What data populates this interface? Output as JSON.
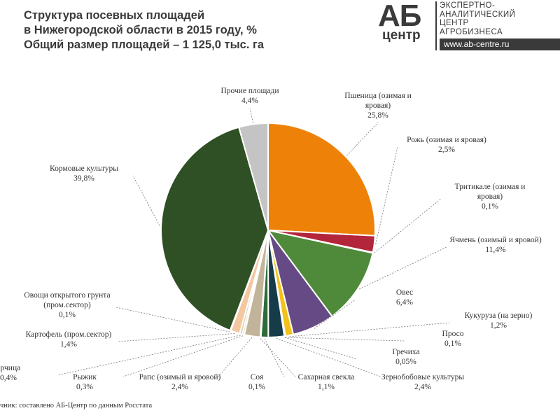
{
  "title": {
    "line1": "Структура посевных площадей",
    "line2": "в Нижегородской области в 2015 году, %",
    "line3": "Общий размер площадей – 1 125,0 тыс. га"
  },
  "logo": {
    "ab": "АБ",
    "centr": "центр",
    "line1": "ЭКСПЕРТНО-",
    "line2": "АНАЛИТИЧЕСКИЙ",
    "line3": "ЦЕНТР",
    "line4": "АГРОБИЗНЕСА",
    "url": "www.ab-centre.ru"
  },
  "source": "чник: составлено АБ-Центр по данным Росстата",
  "chart_data": {
    "type": "pie",
    "unit": "%",
    "slices": [
      {
        "name": "Пшеница (озимая и яровая)",
        "name_lines": [
          "Пшеница (озимая и",
          "яровая)"
        ],
        "value": 25.8,
        "label": "25,8%",
        "color": "#ee8209"
      },
      {
        "name": "Рожь (озимая и яровая)",
        "name_lines": [
          "Рожь (озимая и яровая)"
        ],
        "value": 2.5,
        "label": "2,5%",
        "color": "#b3253a"
      },
      {
        "name": "Тритикале (озимая и яровая)",
        "name_lines": [
          "Тритикале (озимая и",
          "яровая)"
        ],
        "value": 0.1,
        "label": "0,1%",
        "color": "#6f7f9a"
      },
      {
        "name": "Ячмень (озимый и яровой)",
        "name_lines": [
          "Ячмень (озимый и яровой)"
        ],
        "value": 11.4,
        "label": "11,4%",
        "color": "#4e8a3a"
      },
      {
        "name": "Овес",
        "name_lines": [
          "Овес"
        ],
        "value": 6.4,
        "label": "6,4%",
        "color": "#664a85"
      },
      {
        "name": "Кукуруза (на зерно)",
        "name_lines": [
          "Кукуруза (на зерно)"
        ],
        "value": 1.2,
        "label": "1,2%",
        "color": "#f2c21a"
      },
      {
        "name": "Просо",
        "name_lines": [
          "Просо"
        ],
        "value": 0.1,
        "label": "0,1%",
        "color": "#2d5a8c"
      },
      {
        "name": "Гречиха",
        "name_lines": [
          "Гречиха"
        ],
        "value": 0.05,
        "label": "0,05%",
        "color": "#7a2a30"
      },
      {
        "name": "Зернобобовые культуры",
        "name_lines": [
          "Зернобобовые культуры"
        ],
        "value": 2.4,
        "label": "2,4%",
        "color": "#163c4a"
      },
      {
        "name": "Сахарная свекла",
        "name_lines": [
          "Сахарная свекла"
        ],
        "value": 1.1,
        "label": "1,1%",
        "color": "#2f6b3a"
      },
      {
        "name": "Соя",
        "name_lines": [
          "Соя"
        ],
        "value": 0.1,
        "label": "0,1%",
        "color": "#8a9a6a"
      },
      {
        "name": "Рапс (озимый и яровой)",
        "name_lines": [
          "Рапс (озимый и яровой)"
        ],
        "value": 2.4,
        "label": "2,4%",
        "color": "#c2b49a"
      },
      {
        "name": "Рыжик",
        "name_lines": [
          "Рыжик"
        ],
        "value": 0.3,
        "label": "0,3%",
        "color": "#e0d3b8"
      },
      {
        "name": "Горчица",
        "name_lines": [
          "орчица"
        ],
        "value": 0.4,
        "label": "0,4%",
        "color": "#d9cfa8"
      },
      {
        "name": "Картофель (пром.сектор)",
        "name_lines": [
          "Картофель (пром.сектор)"
        ],
        "value": 1.4,
        "label": "1,4%",
        "color": "#f3c7a0"
      },
      {
        "name": "Овощи открытого грунта (пром.сектор)",
        "name_lines": [
          "Овощи открытого грунта",
          "(пром.сектор)"
        ],
        "value": 0.1,
        "label": "0,1%",
        "color": "#cfd6c6"
      },
      {
        "name": "Кормовые культуры",
        "name_lines": [
          "Кормовые культуры"
        ],
        "value": 39.8,
        "label": "39,8%",
        "color": "#2f4f24"
      },
      {
        "name": "Прочие площади",
        "name_lines": [
          "Прочие площади"
        ],
        "value": 4.4,
        "label": "4,4%",
        "color": "#c4c4c4"
      }
    ]
  }
}
